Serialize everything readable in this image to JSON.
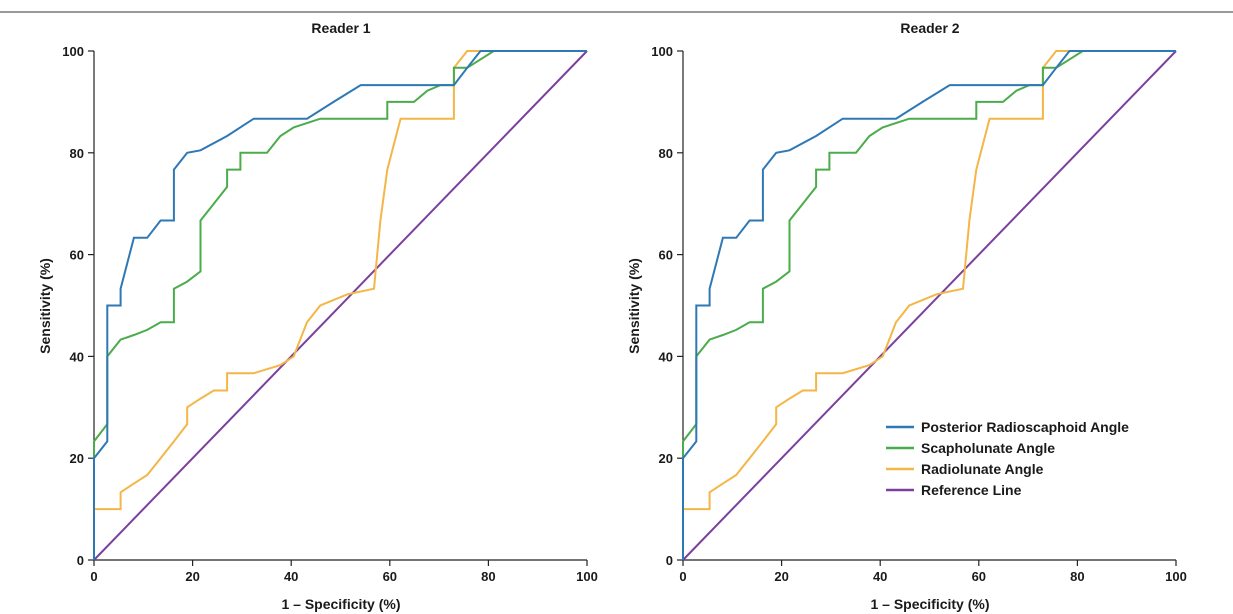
{
  "chart_data": [
    {
      "type": "line",
      "title": "Reader 1",
      "xlabel": "1 – Specificity (%)",
      "ylabel": "Sensitivity (%)",
      "xlim": [
        0,
        100
      ],
      "ylim": [
        0,
        100
      ],
      "xticks": [
        "0",
        "20",
        "40",
        "60",
        "80",
        "100"
      ],
      "yticks": [
        "0",
        "20",
        "40",
        "60",
        "80",
        "100"
      ],
      "grid": false,
      "legend": false,
      "series": [
        {
          "name": "Posterior Radioscaphoid Angle",
          "color": "#2e78b5",
          "x": [
            0,
            0,
            2.7,
            2.7,
            5.4,
            5.4,
            8.1,
            8.1,
            10.8,
            10.8,
            13.5,
            13.5,
            16.2,
            16.2,
            18.9,
            18.9,
            21.6,
            27,
            32.4,
            37.8,
            43.2,
            48.6,
            54.1,
            56.8,
            62.2,
            67.6,
            73,
            75.7,
            78.4,
            81.1,
            100
          ],
          "y": [
            0,
            20,
            23.3,
            50,
            50,
            53.3,
            63.3,
            63.3,
            63.3,
            63.3,
            66.7,
            66.7,
            66.7,
            76.7,
            80,
            80,
            80.5,
            83.3,
            86.7,
            86.7,
            86.7,
            90,
            93.3,
            93.3,
            93.3,
            93.3,
            93.3,
            96.7,
            100,
            100,
            100
          ]
        },
        {
          "name": "Scapholunate Angle",
          "color": "#4aac4a",
          "x": [
            0,
            0,
            2.7,
            2.7,
            5.4,
            8.1,
            10.8,
            13.5,
            16.2,
            16.2,
            18.9,
            21.6,
            21.6,
            24.3,
            27,
            27,
            29.7,
            29.7,
            32.4,
            35.1,
            37.8,
            40.5,
            45.9,
            51.4,
            56.8,
            59.5,
            59.5,
            62.2,
            64.9,
            67.6,
            70.3,
            73,
            73,
            75.7,
            81.1,
            100
          ],
          "y": [
            0,
            23.3,
            26.7,
            40,
            43.3,
            44.2,
            45.2,
            46.7,
            46.7,
            53.3,
            54.7,
            56.7,
            66.7,
            70,
            73.3,
            76.7,
            76.7,
            80,
            80,
            80,
            83.3,
            85,
            86.7,
            86.7,
            86.7,
            86.7,
            90,
            90,
            90,
            92.2,
            93.3,
            93.3,
            96.7,
            96.7,
            100,
            100
          ]
        },
        {
          "name": "Radiolunate Angle",
          "color": "#f4b646",
          "x": [
            0,
            0,
            5.4,
            5.4,
            8.1,
            10.8,
            13.5,
            16.2,
            18.9,
            18.9,
            21.6,
            24.3,
            27,
            27,
            32.4,
            37.8,
            40.5,
            43.2,
            45.9,
            51.4,
            56.8,
            58.1,
            59.5,
            59.5,
            62.2,
            67.6,
            73,
            73,
            75.7,
            81.1,
            100
          ],
          "y": [
            0,
            10,
            10,
            13.3,
            15,
            16.7,
            20,
            23.3,
            26.7,
            30,
            31.7,
            33.3,
            33.3,
            36.7,
            36.7,
            38.3,
            40,
            46.7,
            50,
            52.2,
            53.3,
            66.7,
            76.7,
            76.7,
            86.7,
            86.7,
            86.7,
            96.7,
            100,
            100,
            100
          ]
        },
        {
          "name": "Reference Line",
          "color": "#7b3f9e",
          "x": [
            0,
            100
          ],
          "y": [
            0,
            100
          ]
        }
      ]
    },
    {
      "type": "line",
      "title": "Reader 2",
      "xlabel": "1 – Specificity (%)",
      "ylabel": "Sensitivity (%)",
      "xlim": [
        0,
        100
      ],
      "ylim": [
        0,
        100
      ],
      "xticks": [
        "0",
        "20",
        "40",
        "60",
        "80",
        "100"
      ],
      "yticks": [
        "0",
        "20",
        "40",
        "60",
        "80",
        "100"
      ],
      "grid": false,
      "legend": "lower-right",
      "series": [
        {
          "name": "Posterior Radioscaphoid Angle",
          "color": "#2e78b5",
          "x": [
            0,
            0,
            2.7,
            2.7,
            5.4,
            5.4,
            8.1,
            8.1,
            10.8,
            10.8,
            13.5,
            13.5,
            16.2,
            16.2,
            18.9,
            18.9,
            21.6,
            27,
            32.4,
            37.8,
            43.2,
            48.6,
            54.1,
            56.8,
            62.2,
            67.6,
            73,
            75.7,
            78.4,
            81.1,
            100
          ],
          "y": [
            0,
            20,
            23.3,
            50,
            50,
            53.3,
            63.3,
            63.3,
            63.3,
            63.3,
            66.7,
            66.7,
            66.7,
            76.7,
            80,
            80,
            80.5,
            83.3,
            86.7,
            86.7,
            86.7,
            90,
            93.3,
            93.3,
            93.3,
            93.3,
            93.3,
            96.7,
            100,
            100,
            100
          ]
        },
        {
          "name": "Scapholunate Angle",
          "color": "#4aac4a",
          "x": [
            0,
            0,
            2.7,
            2.7,
            5.4,
            8.1,
            10.8,
            13.5,
            16.2,
            16.2,
            18.9,
            21.6,
            21.6,
            24.3,
            27,
            27,
            29.7,
            29.7,
            32.4,
            35.1,
            37.8,
            40.5,
            45.9,
            51.4,
            56.8,
            59.5,
            59.5,
            62.2,
            64.9,
            67.6,
            70.3,
            73,
            73,
            75.7,
            81.1,
            100
          ],
          "y": [
            0,
            23.3,
            26.7,
            40,
            43.3,
            44.2,
            45.2,
            46.7,
            46.7,
            53.3,
            54.7,
            56.7,
            66.7,
            70,
            73.3,
            76.7,
            76.7,
            80,
            80,
            80,
            83.3,
            85,
            86.7,
            86.7,
            86.7,
            86.7,
            90,
            90,
            90,
            92.2,
            93.3,
            93.3,
            96.7,
            96.7,
            100,
            100
          ]
        },
        {
          "name": "Radiolunate Angle",
          "color": "#f4b646",
          "x": [
            0,
            0,
            5.4,
            5.4,
            8.1,
            10.8,
            13.5,
            16.2,
            18.9,
            18.9,
            21.6,
            24.3,
            27,
            27,
            32.4,
            37.8,
            40.5,
            43.2,
            45.9,
            51.4,
            56.8,
            58.1,
            59.5,
            59.5,
            62.2,
            67.6,
            73,
            73,
            75.7,
            81.1,
            100
          ],
          "y": [
            0,
            10,
            10,
            13.3,
            15,
            16.7,
            20,
            23.3,
            26.7,
            30,
            31.7,
            33.3,
            33.3,
            36.7,
            36.7,
            38.3,
            40,
            46.7,
            50,
            52.2,
            53.3,
            66.7,
            76.7,
            76.7,
            86.7,
            86.7,
            86.7,
            96.7,
            100,
            100,
            100
          ]
        },
        {
          "name": "Reference Line",
          "color": "#7b3f9e",
          "x": [
            0,
            100
          ],
          "y": [
            0,
            100
          ]
        }
      ]
    }
  ]
}
